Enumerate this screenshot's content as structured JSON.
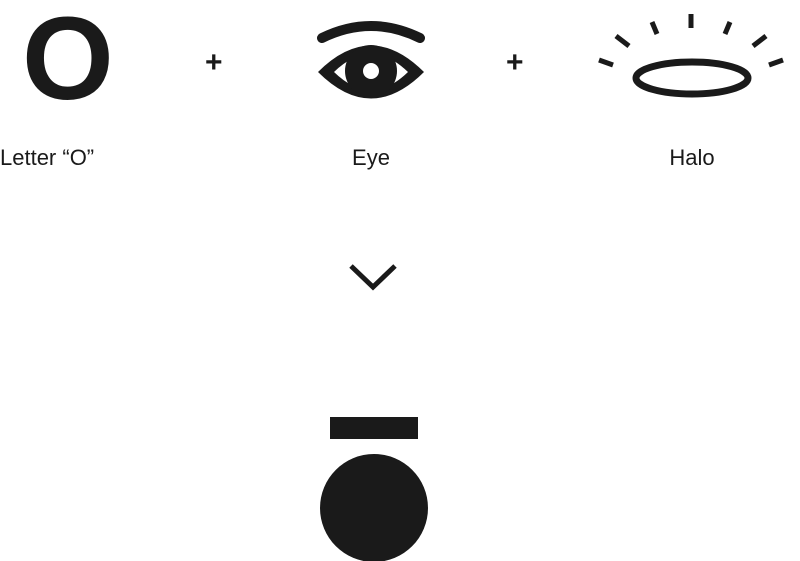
{
  "diagram": {
    "letter_glyph": "O",
    "plus_sign": "+",
    "components": [
      {
        "label": "Letter “O”",
        "icon": "letter-o-glyph"
      },
      {
        "label": "Eye",
        "icon": "eye-icon"
      },
      {
        "label": "Halo",
        "icon": "halo-icon"
      }
    ],
    "result": {
      "icon": "logo-mark-icon"
    },
    "arrow": {
      "icon": "chevron-down-icon"
    },
    "colors": {
      "ink": "#1a1a1a",
      "background": "#ffffff"
    }
  }
}
